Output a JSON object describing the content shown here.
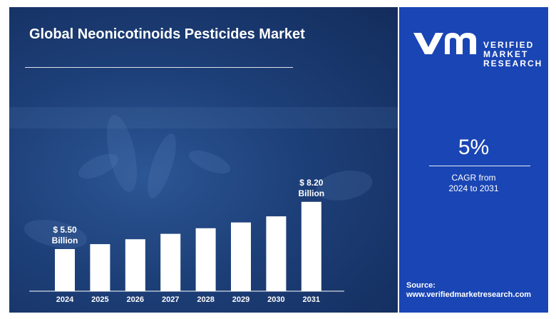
{
  "chart_data": {
    "type": "bar",
    "title": "Global Neonicotinoids Pesticides Market",
    "categories": [
      "2024",
      "2025",
      "2026",
      "2027",
      "2028",
      "2029",
      "2030",
      "2031"
    ],
    "values": [
      5.5,
      5.78,
      6.06,
      6.37,
      6.69,
      7.02,
      7.37,
      8.2
    ],
    "data_labels": [
      {
        "category": "2024",
        "lines": [
          "$ 5.50",
          "Billion"
        ]
      },
      {
        "category": "2031",
        "lines": [
          "$ 8.20",
          "Billion"
        ]
      }
    ],
    "xlabel": "",
    "ylabel": "",
    "grid": false,
    "colors": {
      "bar": "#ffffff",
      "background": "#1d3f78",
      "axis": "#ffffff"
    }
  },
  "sidebar": {
    "logo_lines": [
      "VERIFIED",
      "MARKET",
      "RESEARCH"
    ],
    "registered_mark": "®",
    "cagr_value": "5%",
    "cagr_label_lines": [
      "CAGR from",
      "2024 to 2031"
    ],
    "source_label": "Source:",
    "source_url": "www.verifiedmarketresearch.com",
    "colors": {
      "panel": "#1a45b4"
    }
  }
}
